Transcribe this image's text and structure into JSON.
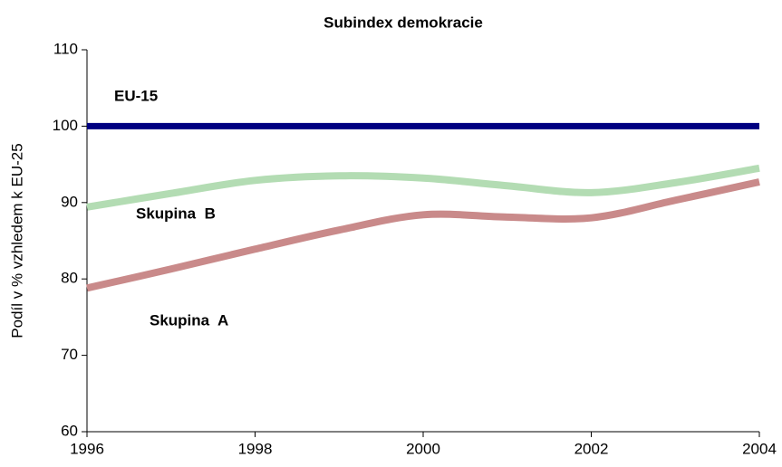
{
  "chart_data": {
    "type": "line",
    "title": "Subindex demokracie",
    "y_label": "Podíl v % vzhledem k EU-25",
    "x": [
      1996,
      1997,
      1998,
      1999,
      2000,
      2001,
      2002,
      2003,
      2004
    ],
    "series": [
      {
        "name": "EU-15",
        "color": "#000080",
        "values": [
          100,
          100,
          100,
          100,
          100,
          100,
          100,
          100,
          100
        ]
      },
      {
        "name": "Skupina  B",
        "color": "#b3dcb3",
        "label_color": "#1e8a1e",
        "values": [
          89.4,
          91.2,
          92.9,
          93.5,
          93.2,
          92.2,
          91.3,
          92.6,
          94.5
        ]
      },
      {
        "name": "Skupina  A",
        "color": "#c98a8a",
        "label_color": "#8b3030",
        "values": [
          78.8,
          81.3,
          83.9,
          86.4,
          88.4,
          88.1,
          88.0,
          90.3,
          92.7
        ]
      }
    ],
    "xlim": [
      1996,
      2004
    ],
    "xticks": [
      1996,
      1998,
      2000,
      2002,
      2004
    ],
    "ylim": [
      60,
      110
    ],
    "yticks": [
      60,
      70,
      80,
      90,
      100,
      110
    ],
    "grid": false
  }
}
